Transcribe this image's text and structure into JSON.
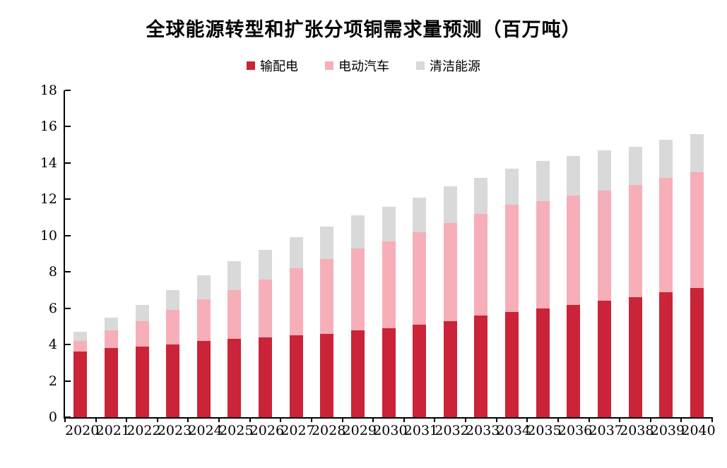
{
  "chart_data": {
    "type": "bar",
    "stacked": true,
    "title": "全球能源转型和扩张分项铜需求量预测（百万吨）",
    "categories": [
      "2020",
      "2021",
      "2022",
      "2023",
      "2024",
      "2025",
      "2026",
      "2027",
      "2028",
      "2029",
      "2030",
      "2031",
      "2032",
      "2033",
      "2034",
      "2035",
      "2036",
      "2037",
      "2038",
      "2039",
      "2040"
    ],
    "series": [
      {
        "name": "输配电",
        "color": "#cb2337",
        "values": [
          3.6,
          3.8,
          3.9,
          4.0,
          4.2,
          4.3,
          4.4,
          4.5,
          4.6,
          4.8,
          4.9,
          5.1,
          5.3,
          5.6,
          5.8,
          6.0,
          6.2,
          6.4,
          6.6,
          6.9,
          7.1
        ]
      },
      {
        "name": "电动汽车",
        "color": "#f6aeb8",
        "values": [
          0.6,
          1.0,
          1.4,
          1.9,
          2.3,
          2.7,
          3.2,
          3.7,
          4.1,
          4.5,
          4.8,
          5.1,
          5.4,
          5.6,
          5.9,
          5.9,
          6.0,
          6.1,
          6.2,
          6.3,
          6.4
        ]
      },
      {
        "name": "清洁能源",
        "color": "#d9d9d9",
        "values": [
          0.5,
          0.7,
          0.9,
          1.1,
          1.3,
          1.6,
          1.6,
          1.7,
          1.8,
          1.8,
          1.9,
          1.9,
          2.0,
          2.0,
          2.0,
          2.2,
          2.2,
          2.2,
          2.1,
          2.1,
          2.1
        ]
      }
    ],
    "totals": [
      4.7,
      5.5,
      6.2,
      7.0,
      7.8,
      8.6,
      9.2,
      9.9,
      10.5,
      11.1,
      11.6,
      12.1,
      12.7,
      13.2,
      13.7,
      14.1,
      14.4,
      14.7,
      14.9,
      15.3,
      15.6
    ],
    "xlabel": "",
    "ylabel": "",
    "ylim": [
      0,
      18
    ],
    "ytick_step": 2,
    "legend_position": "top-center",
    "grid": false,
    "axis_color": "#000000",
    "background_color": "#ffffff"
  }
}
